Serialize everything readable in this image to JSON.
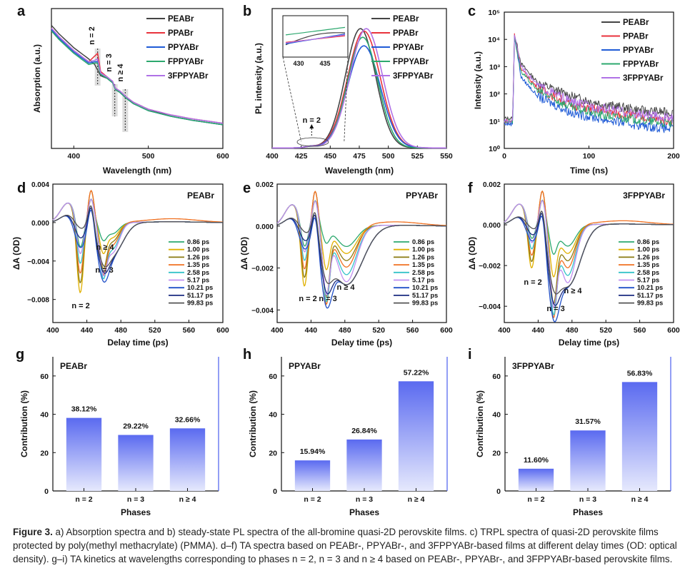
{
  "panel_letters": {
    "a": "a",
    "b": "b",
    "c": "c",
    "d": "d",
    "e": "e",
    "f": "f",
    "g": "g",
    "h": "h",
    "i": "i"
  },
  "colors": {
    "PEABr": "#444444",
    "PPABr": "#e8323c",
    "PPYABr": "#1f5bd6",
    "FPPYABr": "#2ca86e",
    "3FPPYABr": "#b072e6"
  },
  "chart_data": [
    {
      "panel": "a",
      "type": "line",
      "xlabel": "Wavelength (nm)",
      "ylabel": "Absorption (a.u.)",
      "xlim": [
        370,
        600
      ],
      "xticks": [
        400,
        500,
        600
      ],
      "yticks": [],
      "legend": [
        "PEABr",
        "PPABr",
        "PPYABr",
        "FPPYABr",
        "3FPPYABr"
      ],
      "annotations": [
        "n = 2",
        "n = 3",
        "n ≥ 4"
      ],
      "series": [
        {
          "name": "PEABr",
          "x": [
            370,
            380,
            400,
            420,
            428,
            432,
            436,
            445,
            452,
            456,
            462,
            470,
            480,
            500,
            530,
            560,
            600
          ],
          "y": [
            0.88,
            0.82,
            0.72,
            0.64,
            0.6,
            0.56,
            0.52,
            0.5,
            0.47,
            0.42,
            0.4,
            0.36,
            0.33,
            0.28,
            0.23,
            0.2,
            0.17
          ]
        },
        {
          "name": "PPABr",
          "x": [
            370,
            380,
            400,
            420,
            428,
            432,
            436,
            445,
            452,
            456,
            462,
            470,
            480,
            500,
            530,
            560,
            600
          ],
          "y": [
            0.86,
            0.8,
            0.7,
            0.62,
            0.66,
            0.68,
            0.55,
            0.51,
            0.48,
            0.43,
            0.41,
            0.37,
            0.33,
            0.28,
            0.24,
            0.21,
            0.18
          ]
        },
        {
          "name": "PPYABr",
          "x": [
            370,
            380,
            400,
            420,
            428,
            432,
            436,
            445,
            452,
            456,
            462,
            470,
            480,
            500,
            530,
            560,
            600
          ],
          "y": [
            0.85,
            0.79,
            0.69,
            0.61,
            0.62,
            0.62,
            0.53,
            0.5,
            0.47,
            0.42,
            0.4,
            0.36,
            0.32,
            0.27,
            0.23,
            0.2,
            0.17
          ]
        },
        {
          "name": "FPPYABr",
          "x": [
            370,
            380,
            400,
            420,
            428,
            432,
            436,
            445,
            452,
            456,
            462,
            470,
            480,
            500,
            530,
            560,
            600
          ],
          "y": [
            0.84,
            0.78,
            0.68,
            0.6,
            0.61,
            0.61,
            0.53,
            0.5,
            0.47,
            0.42,
            0.4,
            0.36,
            0.32,
            0.27,
            0.23,
            0.2,
            0.17
          ]
        },
        {
          "name": "3FPPYABr",
          "x": [
            370,
            380,
            400,
            420,
            428,
            432,
            436,
            445,
            452,
            456,
            462,
            470,
            480,
            500,
            530,
            560,
            600
          ],
          "y": [
            0.86,
            0.8,
            0.7,
            0.62,
            0.63,
            0.64,
            0.54,
            0.51,
            0.48,
            0.43,
            0.41,
            0.37,
            0.33,
            0.28,
            0.24,
            0.21,
            0.18
          ]
        }
      ]
    },
    {
      "panel": "b",
      "type": "line",
      "xlabel": "Wavelength (nm)",
      "ylabel": "PL intensity (a.u.)",
      "xlim": [
        400,
        550
      ],
      "xticks": [
        400,
        425,
        450,
        475,
        500,
        525,
        550
      ],
      "inset_xticks": [
        "430",
        "435"
      ],
      "legend": [
        "PEABr",
        "PPABr",
        "PPYABr",
        "FPPYABr",
        "3FPPYABr"
      ],
      "annotations": [
        "n = 2"
      ],
      "series": [
        {
          "name": "PEABr",
          "peak": 476,
          "width": 13,
          "amp": 0.97
        },
        {
          "name": "PPABr",
          "peak": 479,
          "width": 14,
          "amp": 0.95
        },
        {
          "name": "PPYABr",
          "peak": 479,
          "width": 14,
          "amp": 0.83
        },
        {
          "name": "FPPYABr",
          "peak": 478,
          "width": 13,
          "amp": 0.9
        },
        {
          "name": "3FPPYABr",
          "peak": 481,
          "width": 14,
          "amp": 0.97
        }
      ]
    },
    {
      "panel": "c",
      "type": "line",
      "xlabel": "Time (ns)",
      "ylabel": "Intensity (a.u.)",
      "xlim": [
        0,
        200
      ],
      "xticks": [
        0,
        100,
        200
      ],
      "ylim_log10": [
        0,
        5
      ],
      "yticks": [
        "10⁰",
        "10¹",
        "10²",
        "10³",
        "10⁴",
        "10⁵"
      ],
      "legend": [
        "PEABr",
        "PPABr",
        "PPYABr",
        "FPPYABr",
        "3FPPYABr"
      ],
      "series": [
        {
          "name": "PEABr",
          "t": [
            0,
            10,
            12,
            20,
            40,
            80,
            120,
            160,
            200
          ],
          "log_y": [
            1.1,
            1.1,
            4.2,
            3.1,
            2.4,
            1.9,
            1.6,
            1.4,
            1.3
          ]
        },
        {
          "name": "PPABr",
          "t": [
            0,
            10,
            12,
            20,
            40,
            80,
            120,
            160,
            200
          ],
          "log_y": [
            1.0,
            1.0,
            4.2,
            2.9,
            2.2,
            1.6,
            1.35,
            1.15,
            1.0
          ]
        },
        {
          "name": "PPYABr",
          "t": [
            0,
            10,
            12,
            20,
            40,
            80,
            120,
            160,
            200
          ],
          "log_y": [
            0.9,
            0.9,
            4.1,
            2.6,
            1.9,
            1.3,
            1.05,
            0.85,
            0.7
          ]
        },
        {
          "name": "FPPYABr",
          "t": [
            0,
            10,
            12,
            20,
            40,
            80,
            120,
            160,
            200
          ],
          "log_y": [
            1.0,
            1.0,
            4.1,
            2.8,
            2.1,
            1.5,
            1.2,
            1.05,
            0.9
          ]
        },
        {
          "name": "3FPPYABr",
          "t": [
            0,
            10,
            12,
            20,
            40,
            80,
            120,
            160,
            200
          ],
          "log_y": [
            1.0,
            1.0,
            4.2,
            3.0,
            2.3,
            1.7,
            1.45,
            1.25,
            1.1
          ]
        }
      ]
    },
    {
      "panel": "d",
      "type": "line",
      "title": "PEABr",
      "xlabel": "Delay time (ps)",
      "ylabel": "ΔA (OD)",
      "xlim": [
        400,
        600
      ],
      "xticks": [
        400,
        440,
        480,
        520,
        560,
        600
      ],
      "ylim": [
        -0.0104,
        0.004
      ],
      "yticks": [
        "0.004",
        "0.000",
        "−0.004",
        "−0.008"
      ],
      "ytick_values": [
        0.004,
        0,
        -0.004,
        -0.008
      ],
      "annotations": [
        "n = 2",
        "n = 3",
        "n ≥ 4"
      ],
      "legend": [
        "0.86 ps",
        "1.00 ps",
        "1.26 ps",
        "1.35 ps",
        "2.58 ps",
        "5.17 ps",
        "10.21 ps",
        "51.17 ps",
        "99.83 ps"
      ],
      "series": [
        {
          "name": "0.86 ps",
          "scale": 0.3,
          "color": "#2ca86e"
        },
        {
          "name": "1.00 ps",
          "scale": 0.55,
          "color": "#e0b000"
        },
        {
          "name": "1.26 ps",
          "scale": 0.85,
          "color": "#8a7a10"
        },
        {
          "name": "1.35 ps",
          "scale": 0.95,
          "color": "#f07020"
        },
        {
          "name": "2.58 ps",
          "scale": 1.0,
          "color": "#34c3c8"
        },
        {
          "name": "5.17 ps",
          "scale": 0.9,
          "color": "#c090f0"
        },
        {
          "name": "10.21 ps",
          "scale": 0.8,
          "color": "#2050c8"
        },
        {
          "name": "51.17 ps",
          "scale": 0.6,
          "color": "#1a2a80"
        },
        {
          "name": "99.83 ps",
          "scale": 0.45,
          "color": "#555555"
        }
      ],
      "features": [
        {
          "center": 432,
          "width": 4,
          "amp": -0.0085
        },
        {
          "center": 459,
          "width": 4,
          "amp": -0.0048
        },
        {
          "center": 470,
          "width": 6,
          "amp": -0.0033
        }
      ]
    },
    {
      "panel": "e",
      "type": "line",
      "title": "PPYABr",
      "xlabel": "Delay time (ps)",
      "ylabel": "ΔA (OD)",
      "xlim": [
        400,
        600
      ],
      "xticks": [
        400,
        440,
        480,
        520,
        560,
        600
      ],
      "ylim": [
        -0.0046,
        0.002
      ],
      "yticks": [
        "0.002",
        "0.000",
        "−0.002",
        "−0.004"
      ],
      "ytick_values": [
        0.002,
        0,
        -0.002,
        -0.004
      ],
      "annotations": [
        "n = 2",
        "n = 3",
        "n ≥ 4"
      ],
      "legend": [
        "0.86 ps",
        "1.00 ps",
        "1.26 ps",
        "1.35 ps",
        "2.58 ps",
        "5.17 ps",
        "10.21 ps",
        "51.17 ps",
        "99.83 ps"
      ],
      "series": [
        {
          "name": "0.86 ps",
          "scale": 0.2,
          "color": "#2ca86e"
        },
        {
          "name": "1.00 ps",
          "scale": 0.55,
          "color": "#e0b000"
        },
        {
          "name": "1.26 ps",
          "scale": 0.9,
          "color": "#8a7a10"
        },
        {
          "name": "1.35 ps",
          "scale": 1.0,
          "color": "#f07020"
        },
        {
          "name": "2.58 ps",
          "scale": 0.95,
          "color": "#34c3c8"
        },
        {
          "name": "5.17 ps",
          "scale": 0.85,
          "color": "#c090f0"
        },
        {
          "name": "10.21 ps",
          "scale": 0.75,
          "color": "#2050c8"
        },
        {
          "name": "51.17 ps",
          "scale": 0.55,
          "color": "#1a2a80"
        },
        {
          "name": "99.83 ps",
          "scale": 0.4,
          "color": "#555555"
        }
      ],
      "features": [
        {
          "center": 432,
          "width": 4,
          "amp": -0.0034
        },
        {
          "center": 458,
          "width": 4,
          "amp": -0.0035
        },
        {
          "center": 482,
          "width": 9,
          "amp": -0.0028
        }
      ]
    },
    {
      "panel": "f",
      "type": "line",
      "title": "3FPPYABr",
      "xlabel": "Delay time (ps)",
      "ylabel": "ΔA (OD)",
      "xlim": [
        400,
        600
      ],
      "xticks": [
        400,
        440,
        480,
        520,
        560,
        600
      ],
      "ylim": [
        -0.0048,
        0.002
      ],
      "yticks": [
        "0.002",
        "0.000",
        "−0.002",
        "−0.004"
      ],
      "ytick_values": [
        0.002,
        0,
        -0.002,
        -0.004
      ],
      "annotations": [
        "n = 2",
        "n = 3",
        "n ≥ 4"
      ],
      "legend": [
        "0.86 ps",
        "1.00 ps",
        "1.26 ps",
        "1.35 ps",
        "2.58 ps",
        "5.17 ps",
        "10.21 ps",
        "51.17 ps",
        "99.83 ps"
      ],
      "series": [
        {
          "name": "0.86 ps",
          "scale": 0.3,
          "color": "#2ca86e"
        },
        {
          "name": "1.00 ps",
          "scale": 0.55,
          "color": "#e0b000"
        },
        {
          "name": "1.26 ps",
          "scale": 0.85,
          "color": "#8a7a10"
        },
        {
          "name": "1.35 ps",
          "scale": 1.0,
          "color": "#f07020"
        },
        {
          "name": "2.58 ps",
          "scale": 0.95,
          "color": "#34c3c8"
        },
        {
          "name": "5.17 ps",
          "scale": 0.85,
          "color": "#c090f0"
        },
        {
          "name": "10.21 ps",
          "scale": 0.75,
          "color": "#2050c8"
        },
        {
          "name": "51.17 ps",
          "scale": 0.55,
          "color": "#1a2a80"
        },
        {
          "name": "99.83 ps",
          "scale": 0.4,
          "color": "#555555"
        }
      ],
      "features": [
        {
          "center": 432,
          "width": 4,
          "amp": -0.0026
        },
        {
          "center": 458,
          "width": 4,
          "amp": -0.0042
        },
        {
          "center": 475,
          "width": 7,
          "amp": -0.003
        }
      ]
    },
    {
      "panel": "g",
      "type": "bar",
      "title": "PEABr",
      "xlabel": "Phases",
      "ylabel": "Contribution (%)",
      "categories": [
        "n = 2",
        "n = 3",
        "n ≥ 4"
      ],
      "values": [
        38.12,
        29.22,
        32.66
      ],
      "labels": [
        "38.12%",
        "29.22%",
        "32.66%"
      ],
      "ylim": [
        0,
        70
      ],
      "yticks": [
        0,
        20,
        40,
        60
      ]
    },
    {
      "panel": "h",
      "type": "bar",
      "title": "PPYABr",
      "xlabel": "Phases",
      "ylabel": "Contribution (%)",
      "categories": [
        "n = 2",
        "n = 3",
        "n ≥ 4"
      ],
      "values": [
        15.94,
        26.84,
        57.22
      ],
      "labels": [
        "15.94%",
        "26.84%",
        "57.22%"
      ],
      "ylim": [
        0,
        70
      ],
      "yticks": [
        0,
        20,
        40,
        60
      ]
    },
    {
      "panel": "i",
      "type": "bar",
      "title": "3FPPYABr",
      "xlabel": "Phases",
      "ylabel": "Contribution (%)",
      "categories": [
        "n = 2",
        "n = 3",
        "n ≥ 4"
      ],
      "values": [
        11.6,
        31.57,
        56.83
      ],
      "labels": [
        "11.60%",
        "31.57%",
        "56.83%"
      ],
      "ylim": [
        0,
        70
      ],
      "yticks": [
        0,
        20,
        40,
        60
      ]
    }
  ],
  "caption": {
    "label": "Figure 3.",
    "text": " a) Absorption spectra and b) steady-state PL spectra of the all-bromine quasi-2D perovskite films. c) TRPL spectra of quasi-2D perovskite films protected by poly(methyl methacrylate) (PMMA). d–f) TA spectra based on PEABr-, PPYABr-, and 3FPPYABr-based films at different delay times (OD: optical density). g–i) TA kinetics at wavelengths corresponding to phases n = 2, n = 3 and n ≥ 4 based on PEABr-, PPYABr-, and 3FPPYABr-based perovskite films."
  }
}
